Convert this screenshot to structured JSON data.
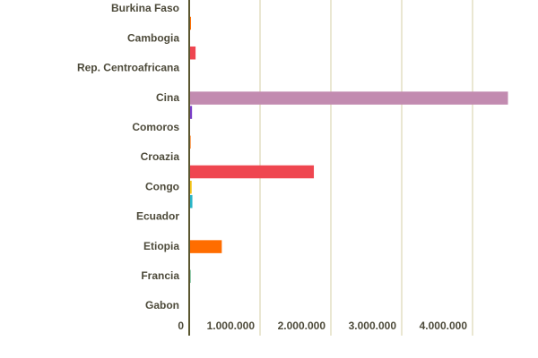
{
  "chart_data": {
    "type": "bar",
    "orientation": "horizontal",
    "categories": [
      "Burkina Faso",
      "Cambogia",
      "Rep. Centroafricana",
      "Cina",
      "Comoros",
      "Croazia",
      "Congo",
      "Ecuador",
      "Etiopia",
      "Francia",
      "Gabon"
    ],
    "series": [
      {
        "colors": [
          "#4caf7a",
          "#2ab6c8",
          "#2ab6c8",
          "#c28bb0",
          "#4caf7a",
          "#4caf7a",
          "#f5c518",
          "#2ab6c8",
          "#ff6d00",
          "#4caf7a",
          "#4caf7a"
        ],
        "values": [
          5000,
          10000,
          5000,
          4500000,
          0,
          10000,
          35000,
          5000,
          460000,
          20000,
          5000
        ]
      },
      {
        "colors": [
          "#ff6d00",
          "#ef4650",
          "#4caf7a",
          "#7b3fc9",
          "#ff6d00",
          "#ef4650",
          "#2ab6c8",
          "#4caf7a",
          "#ff6d00",
          "#4caf7a",
          "#4caf7a"
        ],
        "values": [
          25000,
          90000,
          5000,
          40000,
          20000,
          1760000,
          45000,
          5000,
          0,
          0,
          0
        ]
      }
    ],
    "xlim": [
      0,
      4600000
    ],
    "xticks": [
      0,
      {
        "value": 1000000,
        "label": "1.000.000"
      },
      {
        "value": 2000000,
        "label": "2.000.000"
      },
      {
        "value": 3000000,
        "label": "3.000.000"
      },
      {
        "value": 4000000,
        "label": "4.000.000"
      }
    ],
    "grid": true
  }
}
